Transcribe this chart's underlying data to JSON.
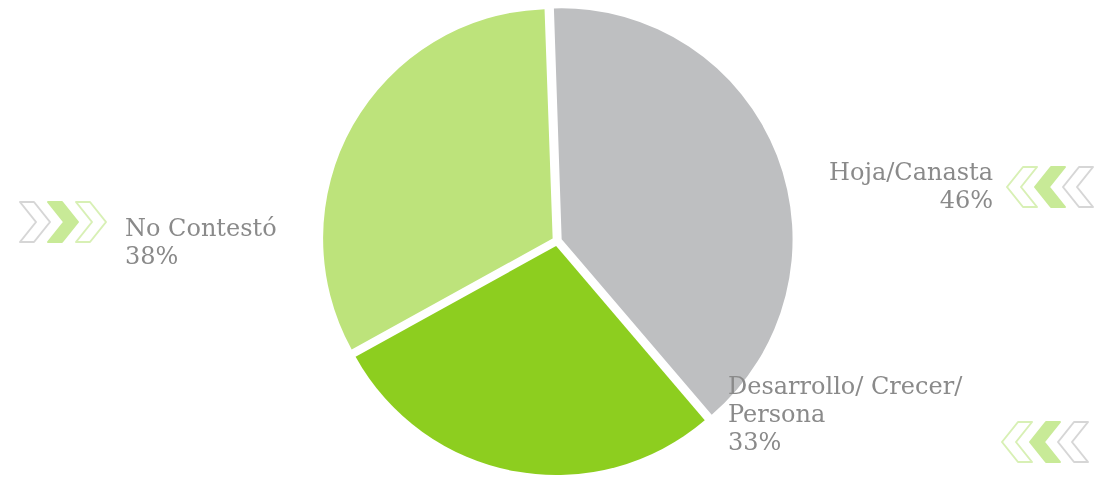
{
  "chart_data": {
    "type": "pie",
    "categories": [
      "Hoja/Canasta",
      "Desarrollo/ Crecer/ Persona",
      "No Contestó"
    ],
    "values": [
      46,
      33,
      38
    ],
    "value_labels": [
      "46%",
      "33%",
      "38%"
    ],
    "colors": [
      "#bebfc1",
      "#8dce1f",
      "#bde37b"
    ],
    "legend": false
  }
}
